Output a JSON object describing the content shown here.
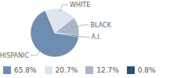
{
  "chart_data": {
    "type": "pie",
    "categories": [
      "HISPANIC",
      "WHITE",
      "BLACK",
      "A.I."
    ],
    "values": [
      65.8,
      20.7,
      12.7,
      0.8
    ],
    "value_labels": [
      "65.8%",
      "20.7%",
      "12.7%",
      "0.8%"
    ],
    "colors": [
      "#6f8db0",
      "#dfe5ef",
      "#a8b6c8",
      "#2d5170"
    ],
    "legend": "bottom"
  }
}
